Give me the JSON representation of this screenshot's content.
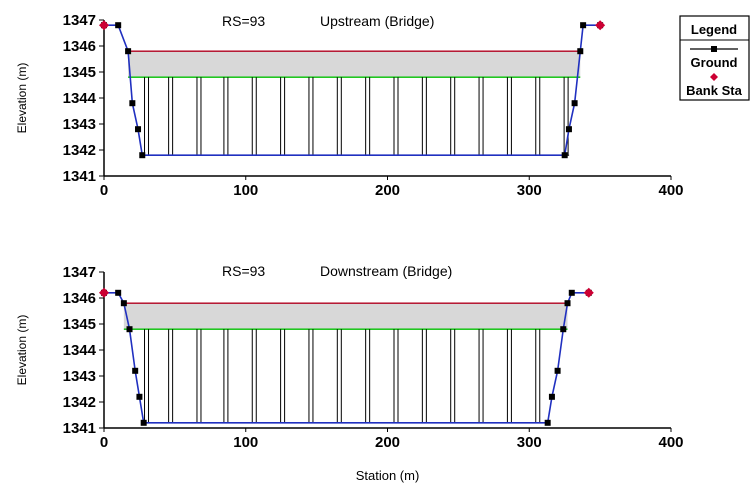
{
  "chart_data": [
    {
      "type": "cross-section",
      "title_rs": "RS=93",
      "title_loc": "Upstream  (Bridge)",
      "ylabel": "Elevation (m)",
      "xlabel": "",
      "xlim": [
        0,
        400
      ],
      "ylim": [
        1341,
        1347
      ],
      "xticks": [
        "0",
        "100",
        "200",
        "300",
        "400"
      ],
      "yticks": [
        "1341",
        "1342",
        "1343",
        "1344",
        "1345",
        "1346",
        "1347"
      ],
      "ground": [
        [
          0,
          1346.8
        ],
        [
          10,
          1346.8
        ],
        [
          17,
          1345.8
        ],
        [
          20,
          1343.8
        ],
        [
          24,
          1342.8
        ],
        [
          27,
          1341.8
        ],
        [
          325,
          1341.8
        ],
        [
          328,
          1342.8
        ],
        [
          332,
          1343.8
        ],
        [
          336,
          1345.8
        ],
        [
          338,
          1346.8
        ],
        [
          350,
          1346.8
        ]
      ],
      "bank_stations": [
        [
          0,
          1346.8
        ],
        [
          350,
          1346.8
        ]
      ],
      "deck_top": 1345.8,
      "low_chord": 1344.8,
      "deck_x": [
        17,
        336
      ],
      "channel_bed": 1341.8,
      "piers": [
        30,
        47,
        67,
        86,
        106,
        126,
        146,
        166,
        186,
        206,
        226,
        246,
        266,
        286,
        306,
        326
      ]
    },
    {
      "type": "cross-section",
      "title_rs": "RS=93",
      "title_loc": "Downstream  (Bridge)",
      "ylabel": "Elevation (m)",
      "xlabel": "Station (m)",
      "xlim": [
        0,
        400
      ],
      "ylim": [
        1341,
        1347
      ],
      "xticks": [
        "0",
        "100",
        "200",
        "300",
        "400"
      ],
      "yticks": [
        "1341",
        "1342",
        "1343",
        "1344",
        "1345",
        "1346",
        "1347"
      ],
      "ground": [
        [
          0,
          1346.2
        ],
        [
          10,
          1346.2
        ],
        [
          14,
          1345.8
        ],
        [
          18,
          1344.8
        ],
        [
          22,
          1343.2
        ],
        [
          25,
          1342.2
        ],
        [
          28,
          1341.2
        ],
        [
          313,
          1341.2
        ],
        [
          316,
          1342.2
        ],
        [
          320,
          1343.2
        ],
        [
          324,
          1344.8
        ],
        [
          327,
          1345.8
        ],
        [
          330,
          1346.2
        ],
        [
          342,
          1346.2
        ]
      ],
      "bank_stations": [
        [
          0,
          1346.2
        ],
        [
          342,
          1346.2
        ]
      ],
      "deck_top": 1345.8,
      "low_chord": 1344.8,
      "deck_x": [
        14,
        327
      ],
      "channel_bed": 1341.2,
      "piers": [
        30,
        47,
        67,
        86,
        106,
        126,
        146,
        166,
        186,
        206,
        226,
        246,
        266,
        286,
        306
      ]
    }
  ],
  "legend": {
    "title": "Legend",
    "items": [
      {
        "label": "Ground",
        "color": "#000000",
        "marker": "square"
      },
      {
        "label": "Bank Sta",
        "color": "#cc0033",
        "marker": "diamond"
      }
    ]
  },
  "colors": {
    "deck_top_line": "#b0001e",
    "low_chord_line": "#00c000",
    "deck_fill": "#d8d8d8",
    "ground_line": "#2030c0",
    "pier_line": "#000000"
  }
}
